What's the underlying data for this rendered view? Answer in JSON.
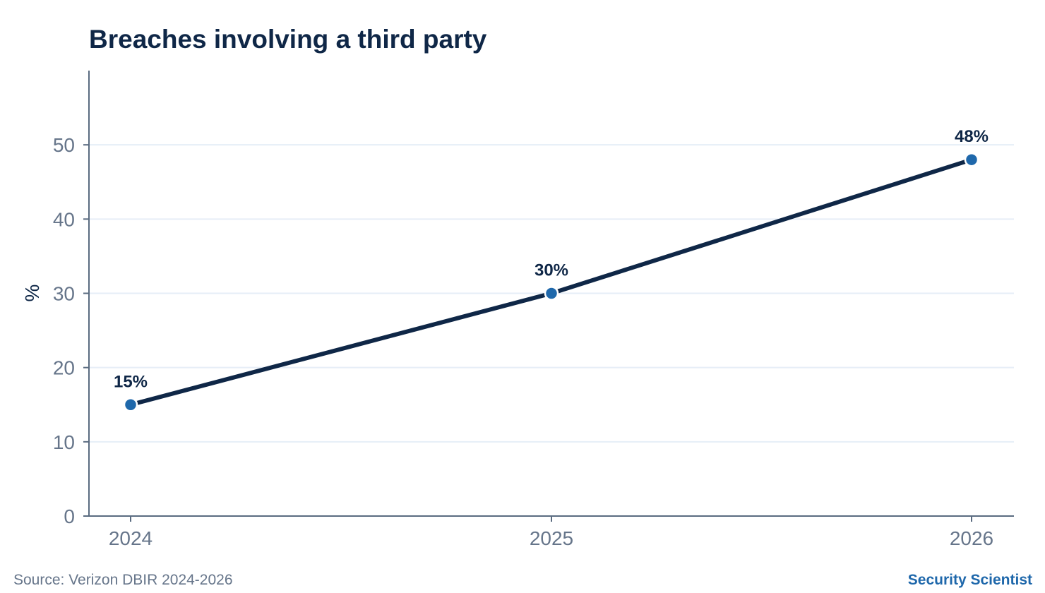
{
  "chart_data": {
    "type": "line",
    "title": "Breaches involving a third party",
    "xlabel": "",
    "ylabel": "%",
    "x": [
      "2024",
      "2025",
      "2026"
    ],
    "series": [
      {
        "values": [
          15,
          30,
          48
        ],
        "data_labels": [
          "15%",
          "30%",
          "48%"
        ]
      }
    ],
    "ylim": [
      0,
      60
    ],
    "yticks": [
      0,
      10,
      20,
      30,
      40,
      50
    ],
    "grid": true,
    "legend": "none",
    "colors": {
      "line": "#0f2747",
      "marker": "#1f68ab",
      "grid": "#e6eef7",
      "axis": "#5a6b80"
    }
  },
  "footer": {
    "source": "Source: Verizon DBIR 2024-2026",
    "brand": "Security Scientist"
  }
}
